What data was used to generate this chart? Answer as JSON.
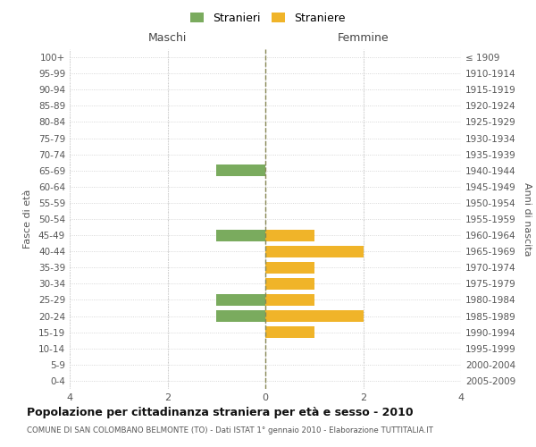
{
  "age_groups": [
    "100+",
    "95-99",
    "90-94",
    "85-89",
    "80-84",
    "75-79",
    "70-74",
    "65-69",
    "60-64",
    "55-59",
    "50-54",
    "45-49",
    "40-44",
    "35-39",
    "30-34",
    "25-29",
    "20-24",
    "15-19",
    "10-14",
    "5-9",
    "0-4"
  ],
  "birth_years": [
    "≤ 1909",
    "1910-1914",
    "1915-1919",
    "1920-1924",
    "1925-1929",
    "1930-1934",
    "1935-1939",
    "1940-1944",
    "1945-1949",
    "1950-1954",
    "1955-1959",
    "1960-1964",
    "1965-1969",
    "1970-1974",
    "1975-1979",
    "1980-1984",
    "1985-1989",
    "1990-1994",
    "1995-1999",
    "2000-2004",
    "2005-2009"
  ],
  "maschi": [
    0,
    0,
    0,
    0,
    0,
    0,
    0,
    1,
    0,
    0,
    0,
    1,
    0,
    0,
    0,
    1,
    1,
    0,
    0,
    0,
    0
  ],
  "femmine": [
    0,
    0,
    0,
    0,
    0,
    0,
    0,
    0,
    0,
    0,
    0,
    1,
    2,
    1,
    1,
    1,
    2,
    1,
    0,
    0,
    0
  ],
  "color_maschi": "#7aab5e",
  "color_femmine": "#f0b429",
  "title": "Popolazione per cittadinanza straniera per età e sesso - 2010",
  "subtitle": "COMUNE DI SAN COLOMBANO BELMONTE (TO) - Dati ISTAT 1° gennaio 2010 - Elaborazione TUTTITALIA.IT",
  "xlabel_left": "Maschi",
  "xlabel_right": "Femmine",
  "ylabel_left": "Fasce di età",
  "ylabel_right": "Anni di nascita",
  "legend_maschi": "Stranieri",
  "legend_femmine": "Straniere",
  "xlim": 4,
  "background_color": "#ffffff",
  "grid_color": "#cccccc",
  "center_line_color": "#888855",
  "bar_height": 0.72
}
